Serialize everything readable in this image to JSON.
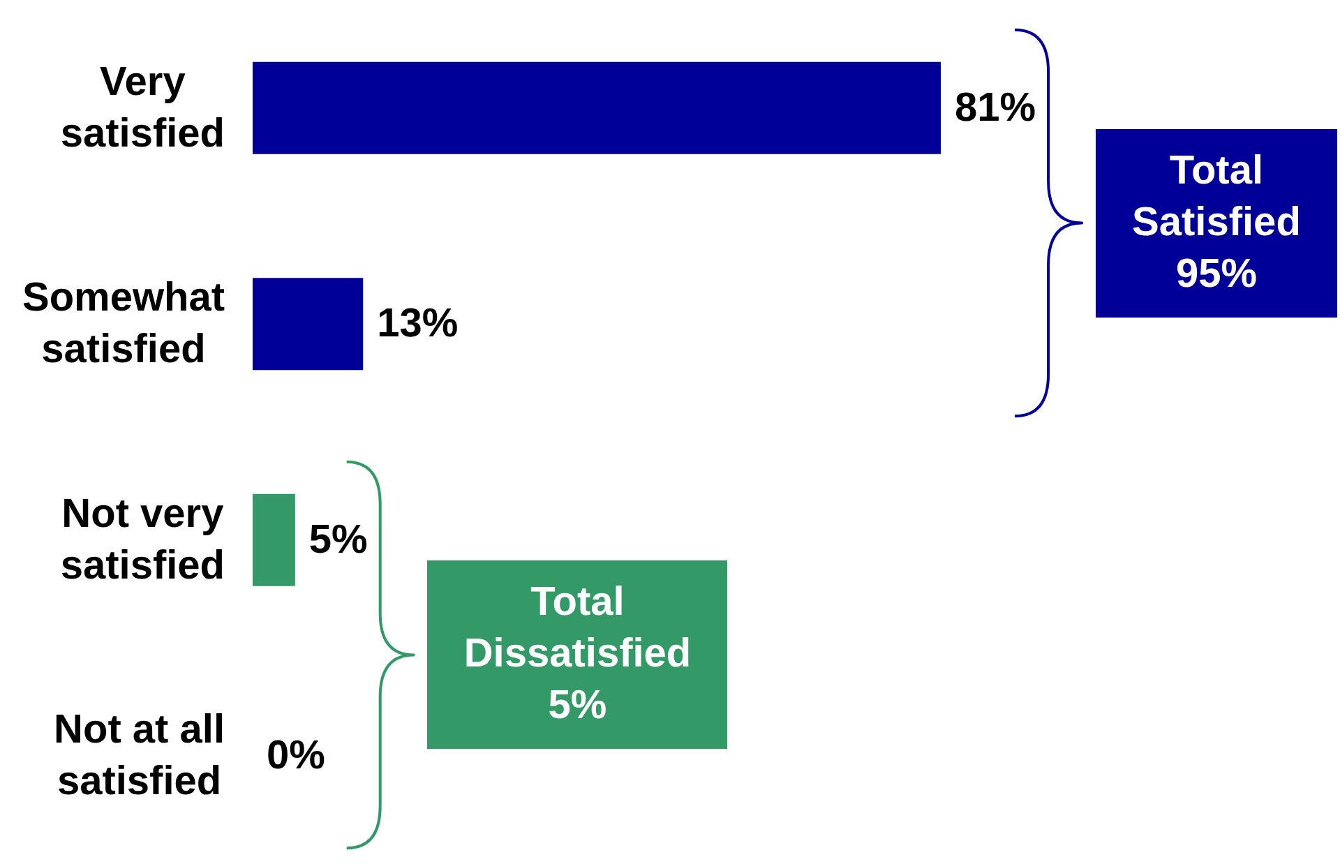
{
  "chart_data": {
    "type": "bar",
    "orientation": "horizontal",
    "categories": [
      "Very satisfied",
      "Somewhat satisfied",
      "Not very satisfied",
      "Not at all satisfied"
    ],
    "values": [
      81,
      13,
      5,
      0
    ],
    "colors": [
      "#000099",
      "#000099",
      "#339966",
      "#339966"
    ],
    "value_labels": [
      "81%",
      "13%",
      "5%",
      "0%"
    ],
    "tick_labels": "y",
    "annotations": [
      "Total Satisfied 95%",
      "Total Dissatisfied 5%"
    ]
  }
}
